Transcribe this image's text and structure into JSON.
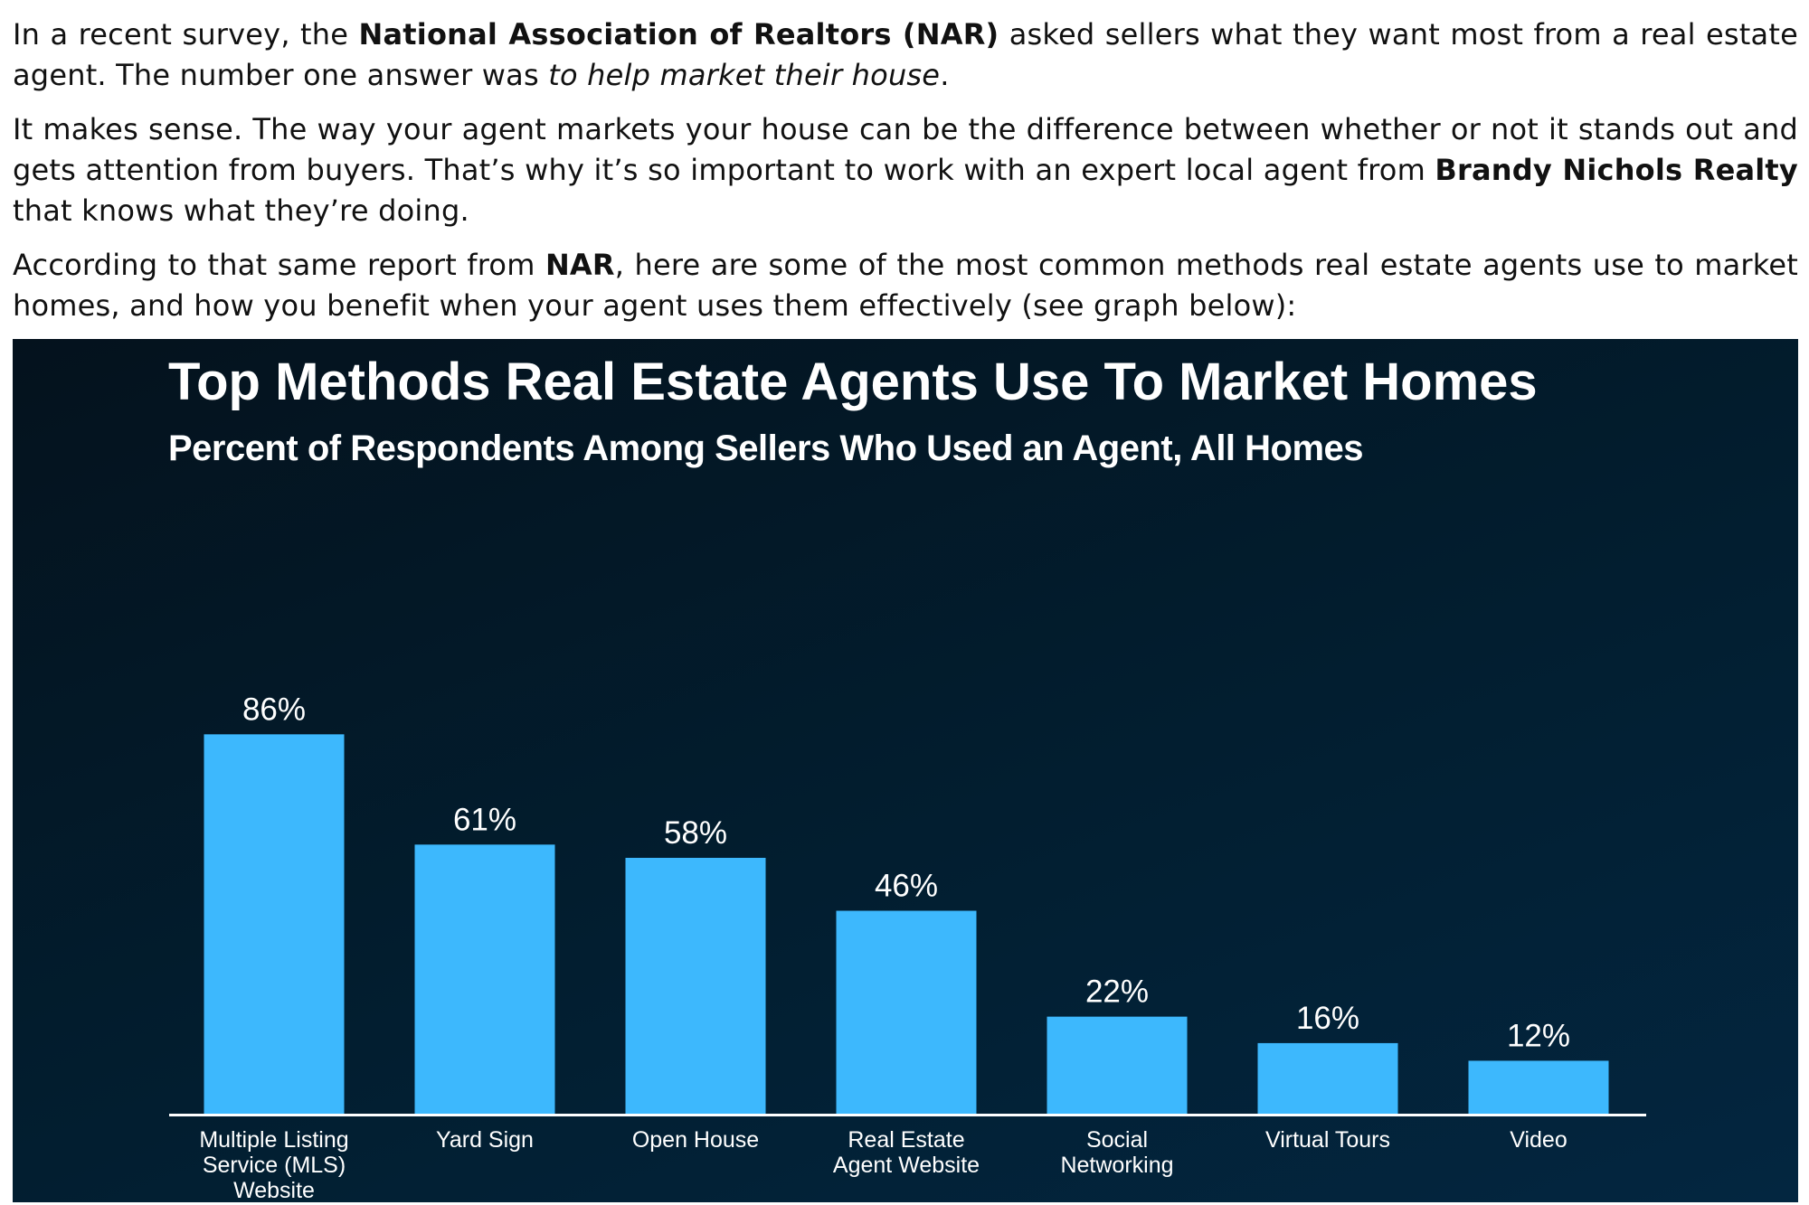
{
  "article": {
    "p1": {
      "t1": "In a recent survey, the ",
      "b1": "National Association of Realtors (NAR)",
      "t2": " asked sellers what they want most from a real estate agent. The number one answer was ",
      "i1": "to help market their house",
      "t3": "."
    },
    "p2": {
      "t1": "It makes sense. The way your agent markets your house can be the difference between whether or not it stands out and gets attention from buyers. That’s why it’s so important to work with an expert local agent from ",
      "b1": "Brandy Nichols Realty",
      "t2": " that knows what they’re doing."
    },
    "p3": {
      "t1": "According to that same report from ",
      "b1": "NAR",
      "t2": ", here are some of the most common methods real estate agents use to market homes, and how you benefit when your agent uses them effectively (see graph below):"
    }
  },
  "chart_data": {
    "type": "bar",
    "title": "Top Methods Real Estate Agents Use To Market Homes",
    "subtitle": "Percent of Respondents Among Sellers Who Used an Agent, All Homes",
    "categories": [
      "Multiple Listing Service (MLS) Website",
      "Yard Sign",
      "Open House",
      "Real Estate Agent Website",
      "Social Networking",
      "Virtual Tours",
      "Video"
    ],
    "category_lines": [
      [
        "Multiple Listing",
        "Service (MLS)",
        "Website"
      ],
      [
        "Yard Sign"
      ],
      [
        "Open House"
      ],
      [
        "Real Estate",
        "Agent Website"
      ],
      [
        "Social",
        "Networking"
      ],
      [
        "Virtual Tours"
      ],
      [
        "Video"
      ]
    ],
    "values": [
      86,
      61,
      58,
      46,
      22,
      16,
      12
    ],
    "value_labels": [
      "86%",
      "61%",
      "58%",
      "46%",
      "22%",
      "16%",
      "12%"
    ],
    "unit": "%",
    "ylim": [
      0,
      100
    ],
    "grid": false,
    "legend": "none",
    "colors": {
      "bar": "#3db8fd",
      "axis": "#ffffff",
      "text": "#ffffff",
      "background": "#021e30"
    }
  }
}
